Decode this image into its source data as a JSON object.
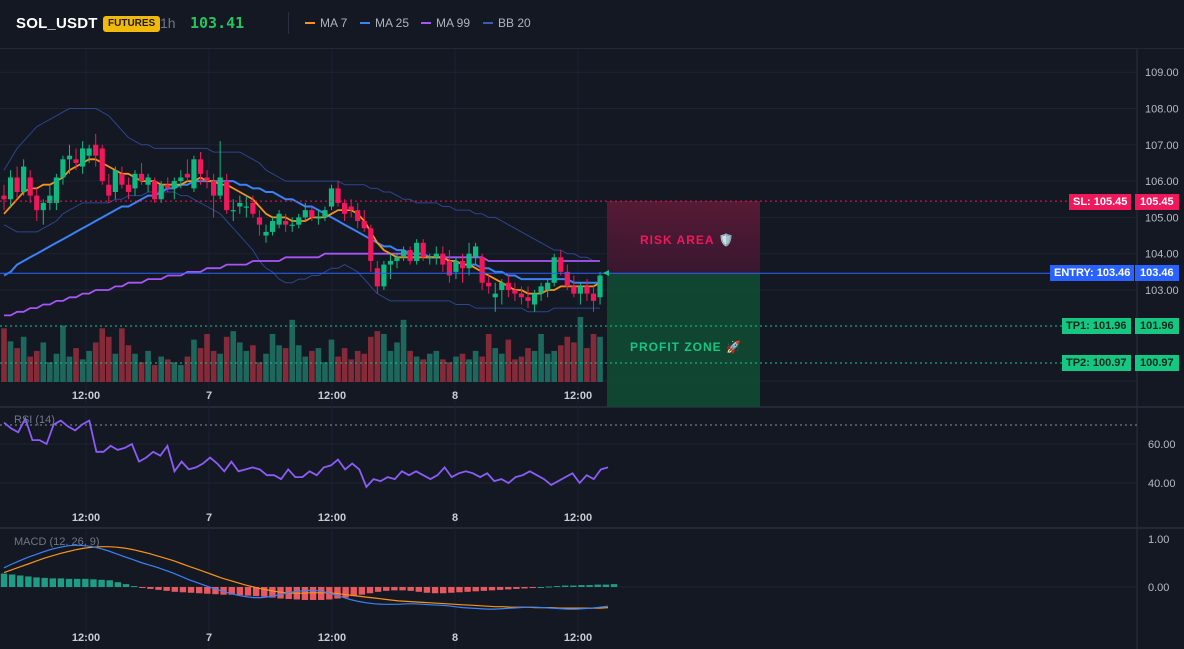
{
  "header": {
    "symbol": "SOL_USDT",
    "badge": "FUTURES",
    "timeframe": "1h",
    "price": "103.41",
    "indicators": [
      {
        "label": "MA 7",
        "color": "#f7931a"
      },
      {
        "label": "MA 25",
        "color": "#3b82f6"
      },
      {
        "label": "MA 99",
        "color": "#a855f7"
      },
      {
        "label": "BB 20",
        "color": "#3b5bb8"
      }
    ]
  },
  "colors": {
    "up": "#10b981",
    "down": "#f0185a",
    "entry": "#2962ff",
    "tp": "#16c784",
    "sl": "#f0185a"
  },
  "price_axis": {
    "ticks": [
      "109.00",
      "108.00",
      "107.00",
      "106.00",
      "105.00",
      "104.00",
      "103.00"
    ]
  },
  "time_axis": {
    "ticks": [
      "12:00",
      "7",
      "12:00",
      "8",
      "12:00"
    ]
  },
  "levels": {
    "sl": {
      "label": "SL: 105.45",
      "value": "105.45"
    },
    "entry": {
      "label": "ENTRY: 103.46",
      "value": "103.46"
    },
    "tp1": {
      "label": "TP1: 101.96",
      "value": "101.96"
    },
    "tp2": {
      "label": "TP2: 100.97",
      "value": "100.97"
    }
  },
  "zones": {
    "risk": "RISK AREA 🛡️",
    "profit": "PROFIT ZONE 🚀"
  },
  "rsi": {
    "title": "RSI (14)",
    "ticks": [
      "60.00",
      "40.00"
    ]
  },
  "macd": {
    "title": "MACD (12, 26, 9)",
    "ticks": [
      "1.00",
      "0.00"
    ]
  },
  "chart_data": {
    "type": "candlestick",
    "ylim": [
      102.3,
      109.3
    ],
    "candles": [
      [
        105.6,
        105.9,
        105.2,
        105.5
      ],
      [
        105.5,
        106.3,
        105.3,
        106.1
      ],
      [
        106.1,
        106.4,
        105.5,
        105.7
      ],
      [
        105.7,
        106.6,
        105.6,
        106.4
      ],
      [
        106.1,
        106.3,
        105.4,
        105.6
      ],
      [
        105.6,
        105.8,
        104.9,
        105.2
      ],
      [
        105.2,
        105.5,
        104.8,
        105.4
      ],
      [
        105.4,
        105.9,
        105.2,
        105.6
      ],
      [
        105.4,
        106.2,
        105.2,
        106.1
      ],
      [
        106.1,
        106.7,
        105.9,
        106.6
      ],
      [
        106.6,
        107.0,
        106.2,
        106.7
      ],
      [
        106.6,
        106.9,
        106.3,
        106.5
      ],
      [
        106.4,
        107.1,
        106.2,
        106.9
      ],
      [
        106.7,
        107.0,
        106.5,
        106.9
      ],
      [
        107.0,
        107.3,
        106.4,
        106.7
      ],
      [
        106.9,
        107.0,
        105.9,
        106.0
      ],
      [
        105.9,
        106.2,
        105.4,
        105.6
      ],
      [
        105.7,
        106.4,
        105.5,
        106.3
      ],
      [
        106.2,
        106.4,
        105.8,
        105.9
      ],
      [
        105.9,
        106.1,
        105.5,
        105.7
      ],
      [
        105.8,
        106.3,
        105.6,
        106.2
      ],
      [
        106.2,
        106.5,
        105.9,
        106.0
      ],
      [
        105.9,
        106.2,
        105.7,
        106.1
      ],
      [
        106.0,
        106.1,
        105.4,
        105.5
      ],
      [
        105.5,
        106.0,
        105.4,
        105.9
      ],
      [
        105.9,
        106.1,
        105.7,
        105.8
      ],
      [
        105.8,
        106.1,
        105.5,
        106.0
      ],
      [
        106.0,
        106.3,
        105.8,
        106.1
      ],
      [
        106.2,
        106.6,
        106.0,
        106.1
      ],
      [
        105.8,
        106.7,
        105.7,
        106.6
      ],
      [
        106.6,
        106.8,
        105.9,
        106.2
      ],
      [
        106.1,
        106.3,
        105.8,
        106.0
      ],
      [
        106.0,
        106.2,
        105.0,
        105.6
      ],
      [
        105.6,
        107.1,
        105.5,
        106.1
      ],
      [
        106.0,
        106.2,
        105.1,
        105.2
      ],
      [
        105.2,
        105.5,
        104.9,
        105.2
      ],
      [
        105.3,
        105.6,
        105.1,
        105.4
      ],
      [
        105.3,
        105.6,
        105.0,
        105.3
      ],
      [
        105.4,
        105.6,
        105.0,
        105.1
      ],
      [
        105.0,
        105.2,
        104.5,
        104.8
      ],
      [
        104.5,
        104.8,
        104.3,
        104.6
      ],
      [
        104.6,
        105.0,
        104.5,
        104.9
      ],
      [
        104.8,
        105.2,
        104.7,
        105.1
      ],
      [
        104.9,
        105.1,
        104.6,
        104.8
      ],
      [
        104.8,
        105.0,
        104.6,
        104.8
      ],
      [
        104.8,
        105.1,
        104.7,
        105.0
      ],
      [
        105.0,
        105.4,
        104.9,
        105.2
      ],
      [
        105.2,
        105.3,
        104.9,
        105.0
      ],
      [
        105.0,
        105.2,
        104.8,
        105.0
      ],
      [
        105.0,
        105.3,
        104.9,
        105.2
      ],
      [
        105.3,
        105.9,
        105.2,
        105.8
      ],
      [
        105.8,
        106.0,
        105.3,
        105.4
      ],
      [
        105.4,
        105.5,
        104.9,
        105.1
      ],
      [
        105.3,
        105.5,
        105.0,
        105.2
      ],
      [
        105.2,
        105.4,
        104.7,
        104.9
      ],
      [
        104.9,
        105.2,
        104.6,
        104.7
      ],
      [
        104.7,
        104.8,
        103.5,
        103.8
      ],
      [
        103.6,
        103.8,
        102.9,
        103.1
      ],
      [
        103.1,
        103.8,
        103.0,
        103.7
      ],
      [
        103.7,
        104.0,
        103.3,
        103.8
      ],
      [
        103.8,
        104.0,
        103.6,
        103.9
      ],
      [
        103.9,
        104.2,
        103.8,
        104.1
      ],
      [
        104.1,
        104.2,
        103.7,
        103.8
      ],
      [
        103.8,
        104.4,
        103.7,
        104.3
      ],
      [
        104.3,
        104.4,
        103.8,
        103.9
      ],
      [
        103.9,
        104.0,
        103.7,
        103.9
      ],
      [
        103.9,
        104.2,
        103.7,
        104.0
      ],
      [
        104.0,
        104.2,
        103.5,
        103.7
      ],
      [
        103.8,
        104.1,
        103.2,
        103.4
      ],
      [
        103.5,
        103.9,
        103.3,
        103.8
      ],
      [
        103.8,
        104.0,
        103.2,
        103.6
      ],
      [
        103.6,
        104.3,
        103.4,
        104.0
      ],
      [
        103.9,
        104.3,
        103.7,
        104.2
      ],
      [
        103.9,
        104.0,
        103.0,
        103.2
      ],
      [
        103.2,
        103.4,
        102.9,
        103.1
      ],
      [
        102.8,
        103.2,
        102.4,
        102.9
      ],
      [
        103.0,
        103.3,
        102.6,
        103.2
      ],
      [
        103.2,
        103.4,
        102.8,
        103.0
      ],
      [
        103.0,
        103.2,
        102.7,
        102.9
      ],
      [
        102.9,
        103.1,
        102.6,
        102.8
      ],
      [
        102.8,
        103.1,
        102.5,
        102.7
      ],
      [
        102.6,
        103.0,
        102.4,
        102.9
      ],
      [
        102.9,
        103.2,
        102.7,
        103.1
      ],
      [
        103.0,
        103.3,
        102.8,
        103.2
      ],
      [
        103.2,
        104.0,
        103.1,
        103.9
      ],
      [
        103.9,
        104.1,
        103.4,
        103.5
      ],
      [
        103.5,
        103.7,
        103.0,
        103.1
      ],
      [
        103.1,
        103.4,
        102.8,
        102.9
      ],
      [
        102.9,
        103.2,
        102.6,
        103.1
      ],
      [
        103.1,
        103.3,
        102.7,
        102.9
      ],
      [
        102.9,
        103.1,
        102.4,
        102.7
      ],
      [
        102.8,
        103.5,
        102.6,
        103.4
      ]
    ],
    "ma7": [
      105.1,
      105.3,
      105.5,
      105.7,
      105.8,
      105.8,
      105.9,
      105.9,
      106.0,
      106.1,
      106.3,
      106.4,
      106.5,
      106.6,
      106.6,
      106.5,
      106.4,
      106.3,
      106.2,
      106.2,
      106.1,
      106.0,
      106.0,
      106.0,
      105.9,
      105.9,
      105.9,
      105.9,
      106.0,
      106.0,
      106.1,
      106.0,
      106.0,
      105.9,
      105.9,
      105.8,
      105.7,
      105.6,
      105.5,
      105.3,
      105.1,
      105.0,
      105.0,
      105.0,
      104.9,
      104.9,
      104.9,
      105.0,
      105.0,
      105.0,
      105.1,
      105.2,
      105.2,
      105.2,
      105.1,
      104.9,
      104.6,
      104.3,
      104.1,
      104.0,
      103.9,
      103.9,
      103.9,
      103.9,
      103.9,
      103.9,
      103.9,
      103.9,
      103.8,
      103.8,
      103.7,
      103.7,
      103.6,
      103.5,
      103.4,
      103.3,
      103.2,
      103.1,
      103.0,
      103.0,
      102.9,
      102.9,
      102.9,
      103.0,
      103.0,
      103.1,
      103.1,
      103.1,
      103.1,
      103.1,
      103.1,
      103.2
    ],
    "ma25": [
      103.4,
      103.5,
      103.7,
      103.8,
      103.9,
      104.0,
      104.1,
      104.2,
      104.3,
      104.4,
      104.5,
      104.6,
      104.7,
      104.8,
      104.9,
      105.0,
      105.1,
      105.2,
      105.3,
      105.3,
      105.4,
      105.5,
      105.6,
      105.6,
      105.7,
      105.8,
      105.8,
      105.9,
      105.9,
      106.0,
      106.0,
      106.0,
      106.0,
      106.0,
      106.0,
      106.0,
      105.9,
      105.9,
      105.8,
      105.8,
      105.7,
      105.7,
      105.6,
      105.5,
      105.5,
      105.4,
      105.3,
      105.3,
      105.2,
      105.1,
      105.0,
      104.9,
      104.8,
      104.7,
      104.6,
      104.5,
      104.4,
      104.3,
      104.2,
      104.2,
      104.1,
      104.1,
      104.0,
      104.0,
      104.0,
      103.9,
      103.9,
      103.9,
      103.8,
      103.8,
      103.7,
      103.7,
      103.7,
      103.6,
      103.6,
      103.5,
      103.5,
      103.4,
      103.4,
      103.3,
      103.3,
      103.3,
      103.3,
      103.3,
      103.3,
      103.3,
      103.3,
      103.2,
      103.2,
      103.2,
      103.2,
      103.2
    ],
    "ma99": [
      102.3,
      102.3,
      102.4,
      102.4,
      102.5,
      102.5,
      102.6,
      102.6,
      102.7,
      102.7,
      102.8,
      102.8,
      102.9,
      102.9,
      103.0,
      103.0,
      103.0,
      103.1,
      103.1,
      103.2,
      103.2,
      103.2,
      103.3,
      103.3,
      103.3,
      103.4,
      103.4,
      103.4,
      103.5,
      103.5,
      103.5,
      103.6,
      103.6,
      103.6,
      103.7,
      103.7,
      103.7,
      103.7,
      103.8,
      103.8,
      103.8,
      103.8,
      103.8,
      103.9,
      103.9,
      103.9,
      103.9,
      103.9,
      103.9,
      104.0,
      104.0,
      104.0,
      104.0,
      104.0,
      104.0,
      104.0,
      104.0,
      104.0,
      104.0,
      104.0,
      104.0,
      104.0,
      104.0,
      104.0,
      104.0,
      103.9,
      103.9,
      103.9,
      103.9,
      103.9,
      103.9,
      103.9,
      103.9,
      103.9,
      103.8,
      103.8,
      103.8,
      103.8,
      103.8,
      103.8,
      103.8,
      103.8,
      103.8,
      103.8,
      103.8,
      103.8,
      103.8,
      103.8,
      103.8,
      103.8,
      103.8,
      103.8
    ],
    "bb_upper": [
      106.3,
      106.6,
      106.9,
      107.1,
      107.3,
      107.5,
      107.6,
      107.7,
      107.8,
      107.9,
      108.0,
      108.0,
      108.0,
      108.0,
      108.0,
      107.9,
      107.8,
      107.6,
      107.4,
      107.2,
      107.1,
      107.0,
      107.0,
      106.9,
      106.9,
      106.9,
      106.9,
      106.9,
      106.9,
      106.9,
      106.9,
      106.9,
      106.8,
      106.8,
      106.8,
      106.8,
      106.8,
      106.7,
      106.6,
      106.5,
      106.3,
      106.2,
      106.1,
      106.0,
      106.0,
      106.0,
      106.0,
      106.0,
      106.0,
      106.0,
      106.0,
      106.0,
      105.9,
      105.9,
      105.9,
      105.9,
      105.8,
      105.8,
      105.7,
      105.7,
      105.6,
      105.5,
      105.5,
      105.4,
      105.4,
      105.4,
      105.4,
      105.3,
      105.3,
      105.2,
      105.2,
      105.2,
      105.1,
      105.1,
      105.0,
      105.0,
      104.9,
      104.8,
      104.7,
      104.6,
      104.5,
      104.4,
      104.3,
      104.2,
      104.1,
      104.1,
      104.0,
      104.0,
      103.9,
      103.9,
      103.8,
      103.8
    ],
    "bb_lower": [
      104.8,
      104.7,
      104.6,
      104.6,
      104.6,
      104.6,
      104.7,
      104.8,
      104.9,
      105.1,
      105.2,
      105.3,
      105.4,
      105.4,
      105.4,
      105.4,
      105.4,
      105.5,
      105.5,
      105.6,
      105.6,
      105.6,
      105.7,
      105.7,
      105.7,
      105.7,
      105.7,
      105.6,
      105.6,
      105.5,
      105.4,
      105.3,
      105.2,
      105.1,
      104.9,
      104.7,
      104.5,
      104.3,
      104.1,
      103.8,
      103.6,
      103.5,
      103.3,
      103.2,
      103.2,
      103.3,
      103.3,
      103.4,
      103.4,
      103.5,
      103.6,
      103.6,
      103.7,
      103.6,
      103.5,
      103.3,
      103.1,
      102.9,
      102.8,
      102.7,
      102.7,
      102.7,
      102.7,
      102.7,
      102.7,
      102.7,
      102.7,
      102.7,
      102.7,
      102.6,
      102.6,
      102.6,
      102.5,
      102.5,
      102.5,
      102.5,
      102.5,
      102.5,
      102.5,
      102.5,
      102.4,
      102.4,
      102.4,
      102.4,
      102.5,
      102.5,
      102.5,
      102.5,
      102.5,
      102.5,
      102.5,
      102.5
    ],
    "volume": [
      0.95,
      0.72,
      0.6,
      0.8,
      0.45,
      0.55,
      0.7,
      0.35,
      0.5,
      1.0,
      0.45,
      0.6,
      0.4,
      0.55,
      0.7,
      0.95,
      0.8,
      0.5,
      0.95,
      0.65,
      0.5,
      0.35,
      0.55,
      0.3,
      0.45,
      0.4,
      0.35,
      0.3,
      0.45,
      0.75,
      0.6,
      0.85,
      0.55,
      0.5,
      0.8,
      0.9,
      0.7,
      0.55,
      0.65,
      0.35,
      0.5,
      0.85,
      0.65,
      0.6,
      1.1,
      0.65,
      0.45,
      0.55,
      0.6,
      0.35,
      0.75,
      0.45,
      0.6,
      0.4,
      0.55,
      0.5,
      0.8,
      0.9,
      0.85,
      0.55,
      0.7,
      1.1,
      0.55,
      0.45,
      0.4,
      0.5,
      0.55,
      0.4,
      0.35,
      0.45,
      0.5,
      0.4,
      0.55,
      0.45,
      0.85,
      0.6,
      0.5,
      0.75,
      0.4,
      0.45,
      0.6,
      0.55,
      0.85,
      0.5,
      0.55,
      0.65,
      0.8,
      0.7,
      1.15,
      0.6,
      0.85,
      0.8
    ],
    "rsi": [
      71,
      68,
      66,
      73,
      62,
      62,
      60,
      70,
      72,
      69,
      67,
      70,
      72,
      56,
      56,
      59,
      57,
      58,
      60,
      51,
      53,
      56,
      54,
      59,
      46,
      51,
      47,
      48,
      50,
      53,
      50,
      46,
      51,
      46,
      47,
      48,
      47,
      44,
      44,
      42,
      47,
      43,
      43,
      46,
      44,
      48,
      49,
      52,
      47,
      50,
      47,
      38,
      42,
      41,
      43,
      42,
      46,
      44,
      46,
      44,
      42,
      44,
      48,
      43,
      45,
      46,
      45,
      43,
      45,
      41,
      42,
      40,
      43,
      44,
      46,
      44,
      42,
      39,
      41,
      43,
      45,
      40,
      44,
      42,
      47,
      48
    ],
    "macd_line": [
      0.4,
      0.48,
      0.55,
      0.62,
      0.68,
      0.74,
      0.79,
      0.83,
      0.86,
      0.87,
      0.86,
      0.84,
      0.8,
      0.75,
      0.69,
      0.63,
      0.57,
      0.51,
      0.46,
      0.41,
      0.35,
      0.29,
      0.22,
      0.15,
      0.09,
      0.03,
      -0.03,
      -0.08,
      -0.13,
      -0.17,
      -0.2,
      -0.22,
      -0.22,
      -0.2,
      -0.17,
      -0.13,
      -0.1,
      -0.08,
      -0.07,
      -0.08,
      -0.11,
      -0.16,
      -0.21,
      -0.26,
      -0.3,
      -0.33,
      -0.35,
      -0.36,
      -0.36,
      -0.36,
      -0.35,
      -0.35,
      -0.36,
      -0.37,
      -0.38,
      -0.39,
      -0.41,
      -0.43,
      -0.44,
      -0.45,
      -0.46,
      -0.46,
      -0.45,
      -0.44,
      -0.43,
      -0.42,
      -0.42,
      -0.43,
      -0.44,
      -0.45,
      -0.46,
      -0.46,
      -0.45,
      -0.44,
      -0.42,
      -0.4
    ],
    "macd_signal": [
      0.3,
      0.36,
      0.42,
      0.48,
      0.54,
      0.6,
      0.65,
      0.7,
      0.74,
      0.78,
      0.81,
      0.83,
      0.84,
      0.84,
      0.83,
      0.81,
      0.78,
      0.74,
      0.7,
      0.65,
      0.6,
      0.55,
      0.49,
      0.43,
      0.37,
      0.31,
      0.25,
      0.19,
      0.14,
      0.09,
      0.04,
      0.0,
      -0.04,
      -0.07,
      -0.1,
      -0.12,
      -0.13,
      -0.13,
      -0.12,
      -0.12,
      -0.12,
      -0.13,
      -0.15,
      -0.17,
      -0.19,
      -0.21,
      -0.23,
      -0.25,
      -0.27,
      -0.29,
      -0.3,
      -0.31,
      -0.32,
      -0.33,
      -0.34,
      -0.35,
      -0.36,
      -0.37,
      -0.38,
      -0.39,
      -0.4,
      -0.41,
      -0.41,
      -0.42,
      -0.42,
      -0.42,
      -0.43,
      -0.43,
      -0.43,
      -0.44,
      -0.44,
      -0.44,
      -0.44,
      -0.44,
      -0.44,
      -0.43
    ],
    "macd_hist": [
      0.28,
      0.26,
      0.24,
      0.22,
      0.2,
      0.19,
      0.18,
      0.18,
      0.17,
      0.17,
      0.17,
      0.16,
      0.15,
      0.14,
      0.1,
      0.06,
      0.02,
      -0.01,
      -0.04,
      -0.06,
      -0.08,
      -0.1,
      -0.11,
      -0.12,
      -0.13,
      -0.14,
      -0.15,
      -0.16,
      -0.16,
      -0.17,
      -0.18,
      -0.19,
      -0.2,
      -0.22,
      -0.24,
      -0.25,
      -0.26,
      -0.27,
      -0.27,
      -0.27,
      -0.26,
      -0.24,
      -0.22,
      -0.19,
      -0.16,
      -0.13,
      -0.1,
      -0.08,
      -0.07,
      -0.07,
      -0.08,
      -0.1,
      -0.12,
      -0.13,
      -0.13,
      -0.12,
      -0.11,
      -0.1,
      -0.09,
      -0.08,
      -0.07,
      -0.06,
      -0.05,
      -0.04,
      -0.03,
      -0.02,
      0.0,
      0.01,
      0.02,
      0.03,
      0.03,
      0.04,
      0.04,
      0.05,
      0.05,
      0.06
    ]
  }
}
